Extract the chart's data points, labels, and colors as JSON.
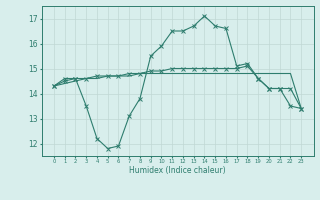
{
  "xlabel": "Humidex (Indice chaleur)",
  "x": [
    0,
    1,
    2,
    3,
    4,
    5,
    6,
    7,
    8,
    9,
    10,
    11,
    12,
    13,
    14,
    15,
    16,
    17,
    18,
    19,
    20,
    21,
    22,
    23
  ],
  "line1": [
    14.3,
    14.6,
    14.6,
    13.5,
    12.2,
    11.8,
    11.9,
    13.1,
    13.8,
    15.5,
    15.9,
    16.5,
    16.5,
    16.7,
    17.1,
    16.7,
    16.6,
    15.1,
    15.2,
    14.6,
    14.2,
    14.2,
    13.5,
    13.4
  ],
  "line2": [
    14.3,
    14.5,
    14.6,
    14.6,
    14.7,
    14.7,
    14.7,
    14.8,
    14.8,
    14.9,
    14.9,
    15.0,
    15.0,
    15.0,
    15.0,
    15.0,
    15.0,
    15.0,
    15.1,
    14.6,
    14.2,
    14.2,
    14.2,
    13.4
  ],
  "line3": [
    14.3,
    14.4,
    14.5,
    14.6,
    14.6,
    14.7,
    14.7,
    14.7,
    14.8,
    14.8,
    14.8,
    14.8,
    14.8,
    14.8,
    14.8,
    14.8,
    14.8,
    14.8,
    14.8,
    14.8,
    14.8,
    14.8,
    14.8,
    13.4
  ],
  "ylim": [
    11.5,
    17.5
  ],
  "yticks": [
    12,
    13,
    14,
    15,
    16,
    17
  ],
  "xticks": [
    0,
    1,
    2,
    3,
    4,
    5,
    6,
    7,
    8,
    9,
    10,
    11,
    12,
    13,
    14,
    15,
    16,
    17,
    18,
    19,
    20,
    21,
    22,
    23
  ],
  "line_color": "#2e7d6e",
  "bg_color": "#d8eeec",
  "grid_color": "#c0d8d4"
}
